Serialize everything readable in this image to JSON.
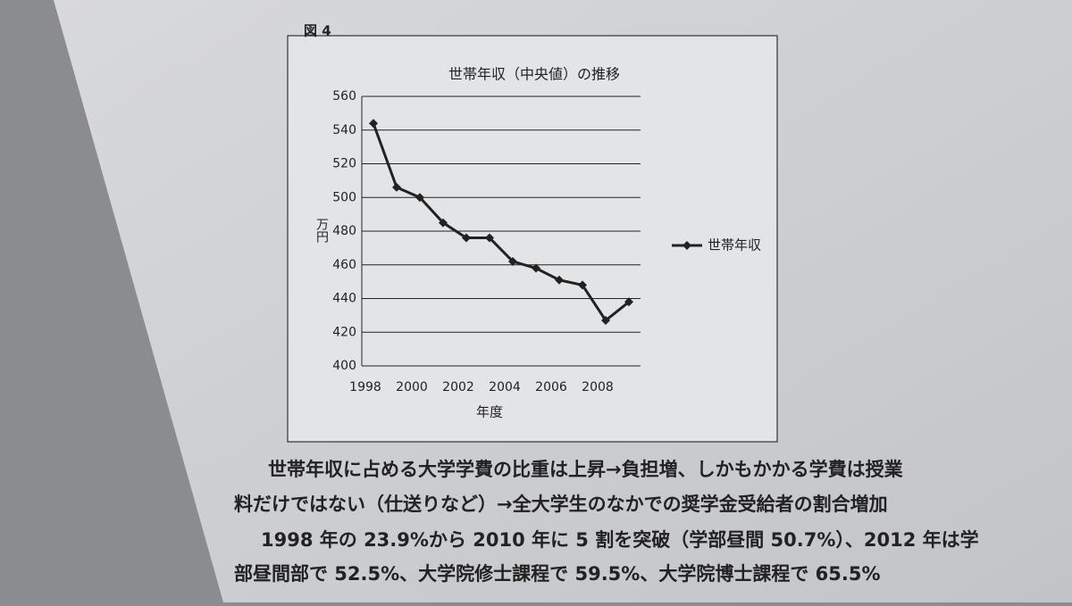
{
  "figure_label": "図 4",
  "chart_data": {
    "type": "line",
    "title": "世帯年収（中央値）の推移",
    "x_label": "年度",
    "y_label": "万円",
    "categories": [
      "1998",
      null,
      "2000",
      null,
      "2002",
      null,
      "2004",
      null,
      "2006",
      null,
      "2008",
      null
    ],
    "series": [
      {
        "name": "世帯年収",
        "color": "#222222",
        "values": [
          544,
          506,
          500,
          485,
          476,
          476,
          462,
          458,
          451,
          448,
          427,
          438
        ]
      }
    ],
    "ylim": [
      400,
      560
    ],
    "yticks": [
      400,
      420,
      440,
      460,
      480,
      500,
      520,
      540,
      560
    ],
    "grid": true,
    "legend": "right"
  },
  "text": [
    "世帯年収に占める大学学費の比重は上昇→負担増、しかもかかる学費は授業",
    "料だけではない（仕送りなど）→全大学生のなかでの奨学金受給者の割合増加",
    "1998 年の 23.9%から 2010 年に 5 割を突破（学部昼間 50.7%）、2012 年は学",
    "部昼間部で 52.5%、大学院修士課程で 59.5%、大学院博士課程で 65.5%"
  ]
}
